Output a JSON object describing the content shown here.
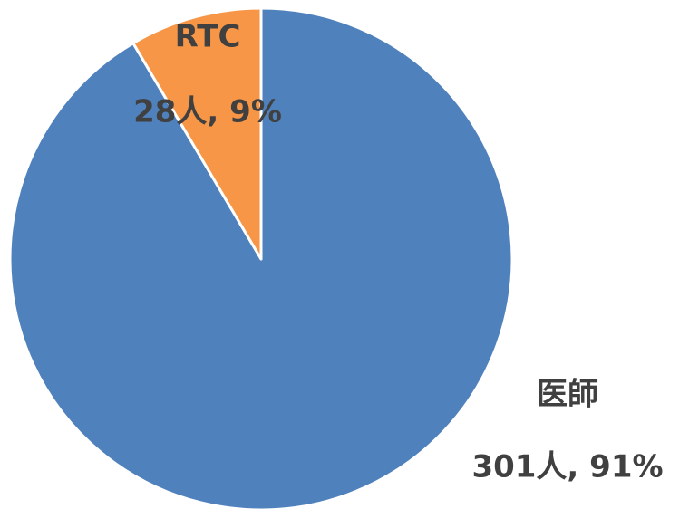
{
  "chart_data": {
    "type": "pie",
    "categories": [
      "医師",
      "RTC"
    ],
    "values": [
      301,
      28
    ],
    "value_labels": [
      "301人, 91%",
      "28人, 9%"
    ],
    "colors": [
      "#4f81bd",
      "#f79646"
    ]
  }
}
